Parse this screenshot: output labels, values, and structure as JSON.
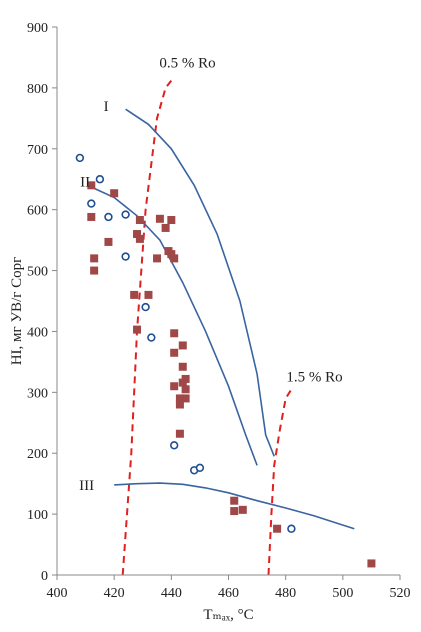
{
  "chart_data": {
    "type": "scatter",
    "title": "",
    "xlabel": "Tₘₐₓ, °C",
    "ylabel": "HI, мг УВ/г Cорг",
    "xlim": [
      400,
      520
    ],
    "ylim": [
      0,
      900
    ],
    "x_ticks": [
      "400",
      "420",
      "440",
      "460",
      "480",
      "500",
      "520"
    ],
    "y_ticks": [
      "0",
      "100",
      "200",
      "300",
      "400",
      "500",
      "600",
      "700",
      "800",
      "900"
    ],
    "grid": false,
    "legend": "none",
    "colors": {
      "squares": "#a04848",
      "circles": "#1f4e91",
      "kerogen_curves": "#3a64a0",
      "ro_lines": "#e02020",
      "axis": "#888888"
    },
    "series": [
      {
        "marker": "square",
        "points": [
          [
            412,
            640
          ],
          [
            412,
            588
          ],
          [
            413,
            520
          ],
          [
            413,
            500
          ],
          [
            418,
            547
          ],
          [
            420,
            627
          ],
          [
            427,
            460
          ],
          [
            428,
            403
          ],
          [
            428,
            560
          ],
          [
            429,
            583
          ],
          [
            429,
            552
          ],
          [
            432,
            460
          ],
          [
            435,
            520
          ],
          [
            436,
            585
          ],
          [
            438,
            570
          ],
          [
            439,
            532
          ],
          [
            440,
            527
          ],
          [
            440,
            583
          ],
          [
            441,
            520
          ],
          [
            441,
            397
          ],
          [
            441,
            365
          ],
          [
            441,
            310
          ],
          [
            443,
            290
          ],
          [
            443,
            280
          ],
          [
            443,
            232
          ],
          [
            444,
            377
          ],
          [
            444,
            342
          ],
          [
            444,
            316
          ],
          [
            445,
            322
          ],
          [
            445,
            305
          ],
          [
            445,
            290
          ],
          [
            462,
            122
          ],
          [
            462,
            105
          ],
          [
            465,
            107
          ],
          [
            477,
            76
          ],
          [
            510,
            19
          ]
        ]
      },
      {
        "marker": "circle",
        "points": [
          [
            408,
            685
          ],
          [
            412,
            610
          ],
          [
            415,
            650
          ],
          [
            418,
            588
          ],
          [
            424,
            592
          ],
          [
            424,
            523
          ],
          [
            431,
            440
          ],
          [
            433,
            390
          ],
          [
            441,
            213
          ],
          [
            448,
            172
          ],
          [
            450,
            176
          ],
          [
            482,
            76
          ]
        ]
      }
    ],
    "curves": [
      {
        "label": "I",
        "points": [
          [
            424,
            765
          ],
          [
            432,
            740
          ],
          [
            440,
            700
          ],
          [
            448,
            640
          ],
          [
            456,
            560
          ],
          [
            464,
            450
          ],
          [
            470,
            330
          ],
          [
            473,
            230
          ],
          [
            476,
            195
          ]
        ]
      },
      {
        "label": "II",
        "points": [
          [
            413,
            635
          ],
          [
            420,
            620
          ],
          [
            428,
            590
          ],
          [
            436,
            550
          ],
          [
            444,
            480
          ],
          [
            452,
            400
          ],
          [
            460,
            310
          ],
          [
            466,
            230
          ],
          [
            470,
            180
          ]
        ]
      },
      {
        "label": "III",
        "points": [
          [
            420,
            148
          ],
          [
            428,
            150
          ],
          [
            436,
            151
          ],
          [
            444,
            149
          ],
          [
            452,
            143
          ],
          [
            460,
            135
          ],
          [
            470,
            122
          ],
          [
            480,
            110
          ],
          [
            490,
            97
          ],
          [
            498,
            85
          ],
          [
            504,
            76
          ]
        ]
      }
    ],
    "ro_lines": [
      {
        "label": "0.5 % Ro",
        "points": [
          [
            423,
            0
          ],
          [
            426,
            200
          ],
          [
            428,
            400
          ],
          [
            431,
            600
          ],
          [
            435,
            750
          ],
          [
            438,
            800
          ],
          [
            440,
            812
          ]
        ]
      },
      {
        "label": "1.5 % Ro",
        "points": [
          [
            474,
            0
          ],
          [
            475,
            100
          ],
          [
            476,
            180
          ],
          [
            478,
            240
          ],
          [
            480,
            290
          ],
          [
            482,
            305
          ]
        ]
      }
    ]
  }
}
